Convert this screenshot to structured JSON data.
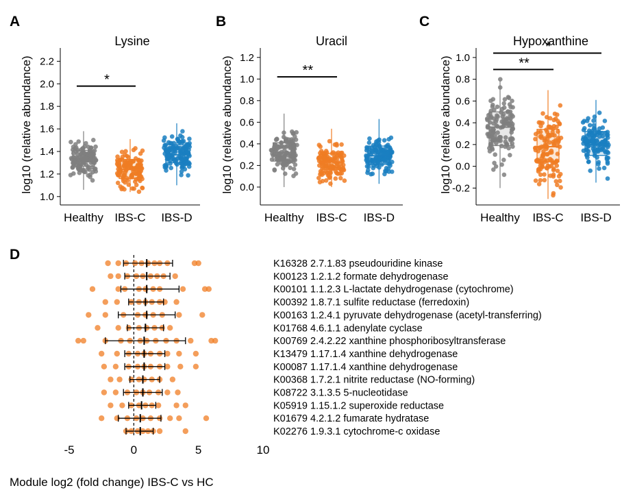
{
  "colors": {
    "Healthy": "#7f7f7f",
    "IBS-C": "#f07d24",
    "IBS-D": "#1a7fc1",
    "axis": "#000000"
  },
  "panels": [
    {
      "letter": "A",
      "title": "Lysine",
      "ylabel": "log10 (relative abundance)"
    },
    {
      "letter": "B",
      "title": "Uracil",
      "ylabel": "log10 (relative abundance)"
    },
    {
      "letter": "C",
      "title": "Hypoxanthine",
      "ylabel": "log10 (relative abundance)"
    },
    {
      "letter": "D",
      "title": "",
      "ylabel": ""
    }
  ],
  "chart_data": [
    {
      "type": "box",
      "title": "Lysine",
      "ylabel": "log10 (relative abundance)",
      "categories": [
        "Healthy",
        "IBS-C",
        "IBS-D"
      ],
      "yticks": [
        1.0,
        1.2,
        1.4,
        1.6,
        1.8,
        2.0,
        2.2
      ],
      "ylim": [
        0.95,
        2.33
      ],
      "boxes": [
        {
          "group": "Healthy",
          "min": 1.06,
          "q1": 1.27,
          "median": 1.33,
          "q3": 1.41,
          "max": 1.58,
          "n": 130
        },
        {
          "group": "IBS-C",
          "min": 1.04,
          "q1": 1.16,
          "median": 1.24,
          "q3": 1.33,
          "max": 1.51,
          "n": 130
        },
        {
          "group": "IBS-D",
          "min": 1.1,
          "q1": 1.3,
          "median": 1.37,
          "q3": 1.46,
          "max": 1.65,
          "n": 130
        }
      ],
      "significance": [
        {
          "from": "Healthy",
          "to": "IBS-C",
          "label": "*",
          "y": 1.98
        }
      ]
    },
    {
      "type": "box",
      "title": "Uracil",
      "ylabel": "log10 (relative abundance)",
      "categories": [
        "Healthy",
        "IBS-C",
        "IBS-D"
      ],
      "yticks": [
        0.0,
        0.2,
        0.4,
        0.6,
        0.8,
        1.0,
        1.2
      ],
      "ylim": [
        -0.14,
        1.3
      ],
      "boxes": [
        {
          "group": "Healthy",
          "min": 0.0,
          "q1": 0.24,
          "median": 0.32,
          "q3": 0.41,
          "max": 0.68,
          "n": 130
        },
        {
          "group": "IBS-C",
          "min": 0.0,
          "q1": 0.16,
          "median": 0.23,
          "q3": 0.31,
          "max": 0.54,
          "n": 130
        },
        {
          "group": "IBS-D",
          "min": 0.03,
          "q1": 0.21,
          "median": 0.29,
          "q3": 0.38,
          "max": 0.63,
          "n": 130
        }
      ],
      "significance": [
        {
          "from": "Healthy",
          "to": "IBS-C",
          "label": "**",
          "y": 1.02
        }
      ]
    },
    {
      "type": "box",
      "title": "Hypoxanthine",
      "ylabel": "log10 (relative abundance)",
      "categories": [
        "Healthy",
        "IBS-C",
        "IBS-D"
      ],
      "yticks": [
        -0.2,
        0.0,
        0.2,
        0.4,
        0.6,
        0.8,
        1.0
      ],
      "ylim": [
        -0.33,
        1.1
      ],
      "boxes": [
        {
          "group": "Healthy",
          "min": -0.2,
          "q1": 0.19,
          "median": 0.36,
          "q3": 0.5,
          "max": 0.79,
          "n": 130
        },
        {
          "group": "IBS-C",
          "min": -0.3,
          "q1": 0.04,
          "median": 0.18,
          "q3": 0.34,
          "max": 0.7,
          "n": 130
        },
        {
          "group": "IBS-D",
          "min": -0.15,
          "q1": 0.1,
          "median": 0.2,
          "q3": 0.32,
          "max": 0.61,
          "n": 130
        }
      ],
      "significance": [
        {
          "from": "Healthy",
          "to": "IBS-C",
          "label": "**",
          "y": 0.89
        },
        {
          "from": "Healthy",
          "to": "IBS-D",
          "label": "*",
          "y": 1.04
        }
      ]
    },
    {
      "type": "dot_errorbar",
      "xlabel": "Module log2 (fold change) IBS-C vs HC",
      "xticks": [
        -5,
        0,
        5,
        10
      ],
      "xlim": [
        -5,
        10
      ],
      "rows": [
        {
          "label": "K16328 2.7.1.83  pseudouridine kinase",
          "mean": 1.0,
          "low": -0.8,
          "high": 3.0,
          "points": [
            -2.0,
            -1.2,
            -0.6,
            0.1,
            0.6,
            1.1,
            1.6,
            2.0,
            2.6,
            4.7,
            5.0
          ]
        },
        {
          "label": "K00123 1.2.1.2   formate dehydrogenase",
          "mean": 1.0,
          "low": -0.7,
          "high": 2.8,
          "points": [
            -1.8,
            -1.2,
            -0.5,
            0.2,
            0.7,
            1.3,
            1.8,
            2.3,
            3.2
          ]
        },
        {
          "label": "K00101 1.1.2.3   L-lactate dehydrogenase (cytochrome)",
          "mean": 1.0,
          "low": -1.0,
          "high": 3.5,
          "points": [
            -3.2,
            -1.2,
            -0.7,
            0.4,
            0.9,
            1.5,
            2.0,
            3.8,
            5.5,
            5.8
          ]
        },
        {
          "label": "K00392 1.8.7.1   sulfite reductase (ferredoxin)",
          "mean": 0.9,
          "low": -0.4,
          "high": 2.3,
          "points": [
            -2.2,
            -1.3,
            -0.2,
            0.4,
            0.9,
            1.4,
            2.0,
            2.4,
            3.3
          ]
        },
        {
          "label": "K00163 1.2.4.1   pyruvate dehydrogenase (acetyl-transferring)",
          "mean": 1.0,
          "low": -1.2,
          "high": 3.2,
          "points": [
            -3.5,
            -2.2,
            -0.8,
            0.3,
            0.9,
            1.5,
            2.2,
            3.5,
            5.3
          ]
        },
        {
          "label": "K01768 4.6.1.1   adenylate cyclase",
          "mean": 0.9,
          "low": -0.5,
          "high": 2.3,
          "points": [
            -2.8,
            -1.2,
            -0.4,
            0.4,
            1.0,
            1.6,
            2.2,
            2.8
          ]
        },
        {
          "label": "K00769 2.4.2.22  xanthine phosphoribosyltransferase",
          "mean": 0.8,
          "low": -2.2,
          "high": 4.0,
          "points": [
            -4.3,
            -3.9,
            -2.2,
            -1.0,
            -0.3,
            0.5,
            1.0,
            1.7,
            2.5,
            3.3,
            4.4,
            6.0,
            6.3
          ]
        },
        {
          "label": "K13479 1.17.1.4  xanthine dehydrogenase",
          "mean": 0.8,
          "low": -0.7,
          "high": 2.4,
          "points": [
            -2.5,
            -1.3,
            -0.4,
            0.3,
            0.8,
            1.3,
            2.0,
            2.6,
            3.5,
            4.8
          ]
        },
        {
          "label": "K00087 1.17.1.4  xanthine dehydrogenase",
          "mean": 0.8,
          "low": -0.7,
          "high": 2.4,
          "points": [
            -2.3,
            -1.4,
            -0.4,
            0.3,
            0.8,
            1.3,
            2.0,
            2.6,
            3.6,
            4.8
          ]
        },
        {
          "label": "K00368 1.7.2.1   nitrite reductase (NO-forming)",
          "mean": 0.7,
          "low": -0.3,
          "high": 2.0,
          "points": [
            -1.8,
            -1.1,
            -0.2,
            0.4,
            0.8,
            1.4,
            2.0,
            3.0
          ]
        },
        {
          "label": "K08722 3.1.3.5   5-nucleotidase",
          "mean": 0.7,
          "low": -0.8,
          "high": 2.2,
          "points": [
            -2.3,
            -1.4,
            -0.5,
            0.2,
            0.7,
            1.2,
            1.9,
            2.6,
            3.4
          ]
        },
        {
          "label": "K05919 1.15.1.2  superoxide reductase",
          "mean": 0.6,
          "low": -0.4,
          "high": 1.7,
          "points": [
            -1.8,
            -0.9,
            -0.2,
            0.4,
            0.9,
            1.4,
            1.9,
            3.3,
            4.0
          ]
        },
        {
          "label": "K01679 4.2.1.2   fumarate hydratase",
          "mean": 0.5,
          "low": -1.2,
          "high": 2.1,
          "points": [
            -2.5,
            -1.3,
            -0.5,
            0.2,
            0.7,
            1.3,
            2.0,
            2.8,
            3.5,
            5.6
          ]
        },
        {
          "label": "K02276 1.9.3.1   cytochrome-c oxidase",
          "mean": 0.5,
          "low": -0.6,
          "high": 1.5,
          "points": [
            -0.6,
            -0.2,
            0.3,
            0.7,
            1.1,
            1.5,
            2.0,
            4.0
          ]
        }
      ]
    }
  ]
}
